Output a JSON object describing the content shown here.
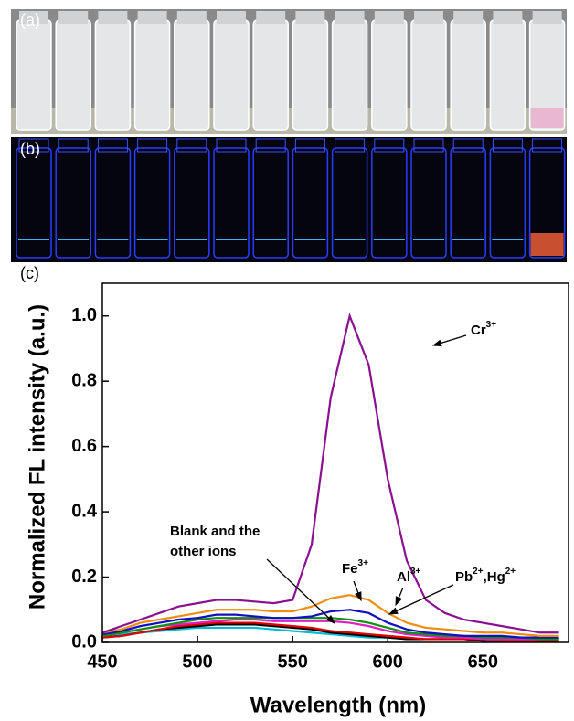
{
  "panels": {
    "a": "(a)",
    "b": "(b)"
  },
  "chart_data": {
    "type": "line",
    "panel_label": "(c)",
    "x_label": "Wavelength (nm)",
    "y_label": "Normalized FL intensity (a.u.)",
    "xlim": [
      450,
      695
    ],
    "ylim": [
      0,
      1.1
    ],
    "xticks": [
      450,
      500,
      550,
      600,
      650
    ],
    "yticks": [
      {
        "value": 0,
        "label": "0.0"
      },
      0.2,
      0.4,
      0.6,
      0.8,
      {
        "value": 1,
        "label": "1.0"
      }
    ],
    "x": [
      450,
      460,
      470,
      480,
      490,
      500,
      510,
      520,
      530,
      540,
      550,
      560,
      570,
      580,
      590,
      600,
      610,
      620,
      630,
      640,
      650,
      660,
      670,
      680,
      690
    ],
    "series": [
      {
        "color": "#00bcd4",
        "values": [
          0.02,
          0.025,
          0.03,
          0.035,
          0.04,
          0.045,
          0.045,
          0.045,
          0.045,
          0.04,
          0.035,
          0.03,
          0.025,
          0.02,
          0.015,
          0.015,
          0.01,
          0.01,
          0.01,
          0.01,
          0.01,
          0.01,
          0.01,
          0.01,
          0.01
        ]
      },
      {
        "color": "#000000",
        "values": [
          0.015,
          0.02,
          0.03,
          0.04,
          0.045,
          0.05,
          0.055,
          0.055,
          0.055,
          0.05,
          0.045,
          0.04,
          0.03,
          0.025,
          0.02,
          0.015,
          0.01,
          0.01,
          0.01,
          0.01,
          0.005,
          0.005,
          0.005,
          0.005,
          0.005
        ]
      },
      {
        "color": "#e00000",
        "values": [
          0.015,
          0.02,
          0.03,
          0.04,
          0.05,
          0.055,
          0.06,
          0.06,
          0.06,
          0.055,
          0.05,
          0.045,
          0.035,
          0.03,
          0.025,
          0.02,
          0.015,
          0.01,
          0.01,
          0.01,
          0.01,
          0.005,
          0.005,
          0.005,
          0.005
        ]
      },
      {
        "color": "#e020c0",
        "values": [
          0.02,
          0.03,
          0.04,
          0.05,
          0.055,
          0.06,
          0.065,
          0.07,
          0.07,
          0.065,
          0.065,
          0.065,
          0.065,
          0.06,
          0.05,
          0.035,
          0.025,
          0.02,
          0.015,
          0.015,
          0.01,
          0.01,
          0.01,
          0.01,
          0.01
        ]
      },
      {
        "color": "#109010",
        "values": [
          0.02,
          0.03,
          0.04,
          0.05,
          0.06,
          0.07,
          0.075,
          0.075,
          0.075,
          0.075,
          0.075,
          0.075,
          0.075,
          0.07,
          0.06,
          0.045,
          0.03,
          0.025,
          0.02,
          0.02,
          0.015,
          0.015,
          0.015,
          0.01,
          0.01
        ]
      },
      {
        "color": "#1010c0",
        "values": [
          0.025,
          0.035,
          0.05,
          0.06,
          0.07,
          0.075,
          0.085,
          0.085,
          0.08,
          0.075,
          0.075,
          0.08,
          0.095,
          0.1,
          0.09,
          0.06,
          0.04,
          0.03,
          0.025,
          0.02,
          0.02,
          0.02,
          0.015,
          0.015,
          0.015
        ]
      },
      {
        "color": "#f08c10",
        "values": [
          0.03,
          0.04,
          0.06,
          0.07,
          0.08,
          0.09,
          0.1,
          0.1,
          0.1,
          0.095,
          0.095,
          0.11,
          0.135,
          0.145,
          0.13,
          0.09,
          0.06,
          0.045,
          0.04,
          0.035,
          0.03,
          0.03,
          0.025,
          0.02,
          0.02
        ]
      },
      {
        "color": "#8a1090",
        "values": [
          0.03,
          0.05,
          0.07,
          0.09,
          0.11,
          0.12,
          0.13,
          0.13,
          0.125,
          0.12,
          0.13,
          0.3,
          0.75,
          1.0,
          0.85,
          0.5,
          0.25,
          0.13,
          0.09,
          0.07,
          0.06,
          0.05,
          0.04,
          0.03,
          0.03
        ]
      }
    ],
    "annotations": [
      {
        "text": "Cr",
        "sup": "3+"
      },
      {
        "text": "Fe",
        "sup": "3+"
      },
      {
        "text": "Al",
        "sup": "3+"
      },
      {
        "text": "Pb",
        "sup": "2+",
        "text2": ",Hg",
        "sup2": "2+"
      },
      {
        "text": "Blank and the"
      },
      {
        "text": "other ions"
      }
    ]
  }
}
